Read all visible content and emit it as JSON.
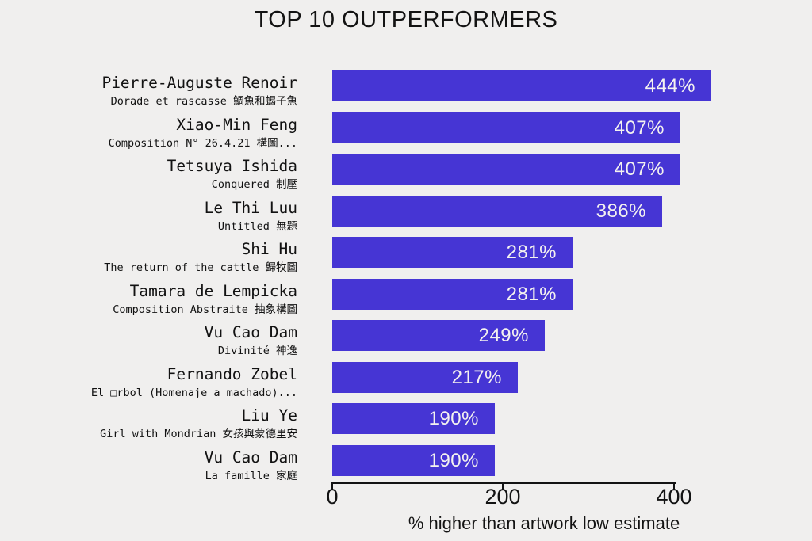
{
  "chart_data": {
    "type": "bar",
    "orientation": "horizontal",
    "title": "TOP 10 OUTPERFORMERS",
    "xlabel": "% higher than artwork low estimate",
    "ylabel": "",
    "xlim": [
      0,
      460
    ],
    "xticks": [
      0,
      200,
      400
    ],
    "xtick_labels": [
      "0",
      "200",
      "400"
    ],
    "grid": false,
    "legend": "none",
    "bar_color": "#4635d4",
    "background_color": "#f0efee",
    "value_suffix": "%",
    "bars": [
      {
        "artist": "Pierre-Auguste Renoir",
        "artwork": "Dorade et rascasse 鯛魚和蝎子魚",
        "value": 444,
        "label": "444%"
      },
      {
        "artist": "Xiao-Min Feng",
        "artwork": "Composition N° 26.4.21 構圖...",
        "value": 407,
        "label": "407%"
      },
      {
        "artist": "Tetsuya Ishida",
        "artwork": "Conquered 制壓",
        "value": 407,
        "label": "407%"
      },
      {
        "artist": "Le Thi Luu",
        "artwork": "Untitled 無題",
        "value": 386,
        "label": "386%"
      },
      {
        "artist": "Shi Hu",
        "artwork": "The return of the cattle 歸牧圖",
        "value": 281,
        "label": "281%"
      },
      {
        "artist": "Tamara de Lempicka",
        "artwork": "Composition Abstraite 抽象構圖",
        "value": 281,
        "label": "281%"
      },
      {
        "artist": "Vu Cao Dam",
        "artwork": "Divinité 神逸",
        "value": 249,
        "label": "249%"
      },
      {
        "artist": "Fernando Zobel",
        "artwork": "El □rbol (Homenaje a machado)...",
        "value": 217,
        "label": "217%"
      },
      {
        "artist": "Liu Ye",
        "artwork": "Girl with Mondrian 女孩與蒙德里安",
        "value": 190,
        "label": "190%"
      },
      {
        "artist": "Vu Cao Dam",
        "artwork": "La famille 家庭",
        "value": 190,
        "label": "190%"
      }
    ]
  }
}
